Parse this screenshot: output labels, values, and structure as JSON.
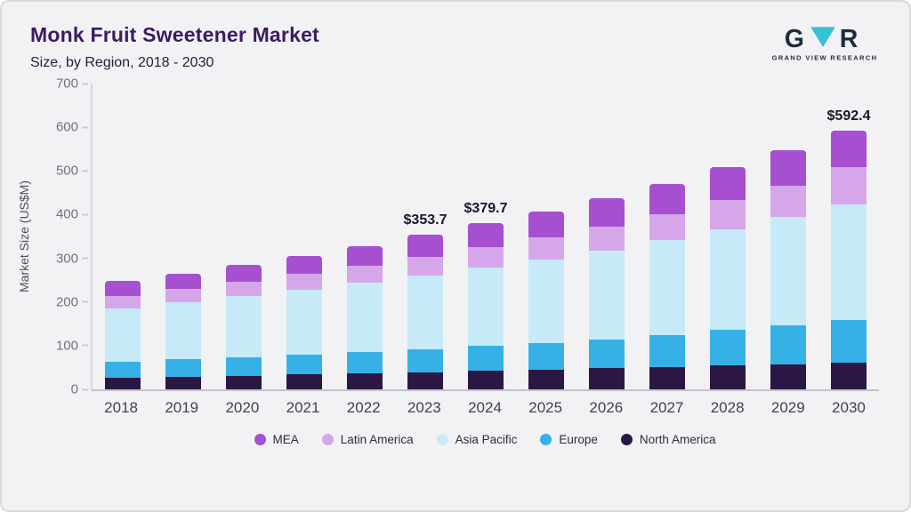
{
  "header": {
    "title": "Monk Fruit Sweetener Market",
    "subtitle": "Size, by Region, 2018 - 2030",
    "logo_text": "GRAND VIEW RESEARCH"
  },
  "chart_data": {
    "type": "bar",
    "stacked": true,
    "title": "Monk Fruit Sweetener Market Size, by Region, 2018 - 2030",
    "xlabel": "",
    "ylabel": "Market Size (US$M)",
    "ylim": [
      0,
      700
    ],
    "ytick_step": 100,
    "grid": false,
    "legend_position": "bottom",
    "categories": [
      "2018",
      "2019",
      "2020",
      "2021",
      "2022",
      "2023",
      "2024",
      "2025",
      "2026",
      "2027",
      "2028",
      "2029",
      "2030"
    ],
    "series": [
      {
        "name": "MEA",
        "color": "#a64fd0",
        "values": [
          34,
          36,
          39,
          42,
          45,
          50.7,
          54.7,
          59,
          65,
          69,
          75,
          82,
          83.4
        ]
      },
      {
        "name": "Latin America",
        "color": "#d5a6ea",
        "values": [
          28,
          30,
          33,
          36,
          39,
          42,
          46,
          50,
          55,
          60,
          66,
          72,
          85
        ]
      },
      {
        "name": "Asia Pacific",
        "color": "#c7eaf8",
        "values": [
          122,
          130,
          139,
          148,
          158,
          169,
          180,
          192,
          204,
          216,
          230,
          247,
          266
        ]
      },
      {
        "name": "Europe",
        "color": "#35b1e6",
        "values": [
          37,
          40,
          43,
          46,
          50,
          53,
          57,
          61,
          66,
          74,
          83,
          90,
          97
        ]
      },
      {
        "name": "North America",
        "color": "#2c1744",
        "values": [
          27,
          29,
          31,
          34,
          36,
          39,
          42,
          45,
          48,
          51,
          54,
          57,
          61
        ]
      }
    ],
    "totals": [
      248,
      265,
      285,
      306,
      328,
      353.7,
      379.7,
      407,
      438,
      470,
      508,
      548,
      592.4
    ],
    "annotations": {
      "2023": "$353.7",
      "2024": "$379.7",
      "2030": "$592.4"
    }
  }
}
